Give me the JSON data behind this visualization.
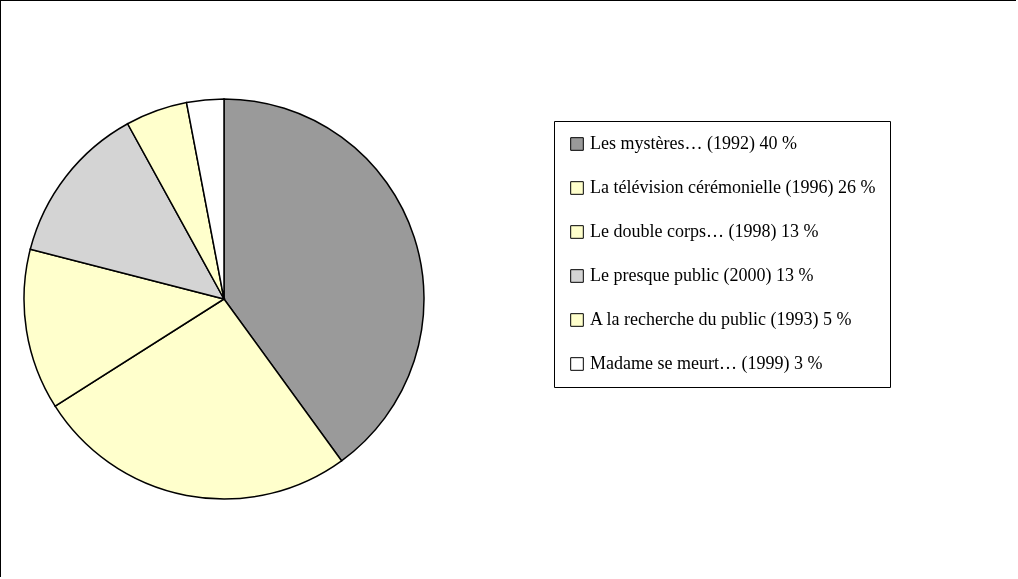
{
  "chart_data": {
    "type": "pie",
    "legend": "right",
    "categories": [
      "Les mystères… (1992) 40 %",
      "La télévision cérémonielle (1996) 26 %",
      "Le double corps… (1998) 13 %",
      "Le presque public (2000) 13 %",
      "A la recherche du public (1993) 5 %",
      "Madame se meurt… (1999) 3 %"
    ],
    "values": [
      40,
      26,
      13,
      13,
      5,
      3
    ],
    "colors": [
      "#9a9a9a",
      "#ffffcc",
      "#ffffcc",
      "#d4d4d4",
      "#ffffcc",
      "#ffffff"
    ]
  }
}
